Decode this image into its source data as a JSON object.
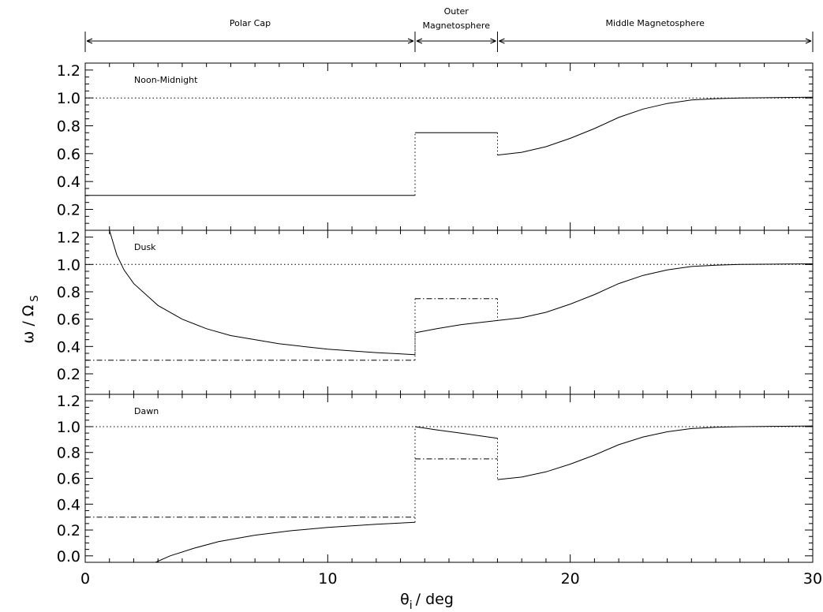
{
  "chart_data": {
    "type": "line",
    "x_range": [
      0,
      30
    ],
    "x_ticks": [
      "0",
      "10",
      "20",
      "30"
    ],
    "xlabel": "θ",
    "xlabel_sub": "i",
    "xlabel_unit": "/ deg",
    "ylabel": "ω / Ω",
    "ylabel_sub": "S",
    "regions": [
      {
        "label": "Polar Cap",
        "x_start": 0,
        "x_end": 13.6
      },
      {
        "label_line1": "Outer",
        "label_line2": "Magnetosphere",
        "x_start": 13.6,
        "x_end": 17.0
      },
      {
        "label": "Middle Magnetosphere",
        "x_start": 17.0,
        "x_end": 30
      }
    ],
    "panels": [
      {
        "label": "Noon-Midnight",
        "ylim": [
          0.05,
          1.25
        ],
        "y_ticks": [
          "0.2",
          "0.4",
          "0.6",
          "0.8",
          "1.0",
          "1.2"
        ],
        "series": [
          {
            "style": "dotted",
            "points": [
              [
                0,
                1.0
              ],
              [
                30,
                1.0
              ]
            ]
          },
          {
            "style": "solid",
            "points": [
              [
                0,
                0.3
              ],
              [
                13.6,
                0.3
              ]
            ]
          },
          {
            "style": "dotted",
            "points": [
              [
                13.6,
                0.3
              ],
              [
                13.6,
                0.75
              ]
            ]
          },
          {
            "style": "solid",
            "points": [
              [
                13.6,
                0.75
              ],
              [
                17.0,
                0.75
              ]
            ]
          },
          {
            "style": "dotted",
            "points": [
              [
                17.0,
                0.75
              ],
              [
                17.0,
                0.59
              ]
            ]
          },
          {
            "style": "solid",
            "points": [
              [
                17.0,
                0.59
              ],
              [
                18.0,
                0.61
              ],
              [
                19.0,
                0.65
              ],
              [
                20.0,
                0.71
              ],
              [
                21.0,
                0.78
              ],
              [
                22.0,
                0.86
              ],
              [
                23.0,
                0.92
              ],
              [
                24.0,
                0.96
              ],
              [
                25.0,
                0.985
              ],
              [
                26.0,
                0.995
              ],
              [
                27.0,
                1.0
              ],
              [
                30.0,
                1.005
              ]
            ]
          }
        ]
      },
      {
        "label": "Dusk",
        "ylim": [
          0.05,
          1.25
        ],
        "y_ticks": [
          "0.2",
          "0.4",
          "0.6",
          "0.8",
          "1.0",
          "1.2"
        ],
        "series": [
          {
            "style": "dotted",
            "points": [
              [
                0,
                1.0
              ],
              [
                30,
                1.0
              ]
            ]
          },
          {
            "style": "dashdot",
            "points": [
              [
                0,
                0.3
              ],
              [
                13.6,
                0.3
              ]
            ]
          },
          {
            "style": "dotted",
            "points": [
              [
                13.6,
                0.3
              ],
              [
                13.6,
                0.75
              ]
            ]
          },
          {
            "style": "dashdot",
            "points": [
              [
                13.6,
                0.75
              ],
              [
                17.0,
                0.75
              ]
            ]
          },
          {
            "style": "dotted",
            "points": [
              [
                17.0,
                0.75
              ],
              [
                17.0,
                0.59
              ]
            ]
          },
          {
            "style": "solid",
            "points": [
              [
                1.0,
                1.25
              ],
              [
                1.3,
                1.07
              ],
              [
                1.6,
                0.96
              ],
              [
                2.0,
                0.86
              ],
              [
                3.0,
                0.7
              ],
              [
                4.0,
                0.6
              ],
              [
                5.0,
                0.53
              ],
              [
                6.0,
                0.48
              ],
              [
                8.0,
                0.42
              ],
              [
                10.0,
                0.38
              ],
              [
                12.0,
                0.355
              ],
              [
                13.6,
                0.34
              ]
            ]
          },
          {
            "style": "dotted",
            "points": [
              [
                13.6,
                0.34
              ],
              [
                13.6,
                0.5
              ]
            ]
          },
          {
            "style": "solid",
            "points": [
              [
                13.6,
                0.5
              ],
              [
                14.5,
                0.53
              ],
              [
                15.5,
                0.56
              ],
              [
                17.0,
                0.59
              ]
            ]
          },
          {
            "style": "solid",
            "points": [
              [
                17.0,
                0.59
              ],
              [
                18.0,
                0.61
              ],
              [
                19.0,
                0.65
              ],
              [
                20.0,
                0.71
              ],
              [
                21.0,
                0.78
              ],
              [
                22.0,
                0.86
              ],
              [
                23.0,
                0.92
              ],
              [
                24.0,
                0.96
              ],
              [
                25.0,
                0.985
              ],
              [
                26.0,
                0.995
              ],
              [
                27.0,
                1.0
              ],
              [
                30.0,
                1.005
              ]
            ]
          }
        ]
      },
      {
        "label": "Dawn",
        "ylim": [
          -0.05,
          1.25
        ],
        "y_ticks": [
          "0.0",
          "0.2",
          "0.4",
          "0.6",
          "0.8",
          "1.0",
          "1.2"
        ],
        "series": [
          {
            "style": "dotted",
            "points": [
              [
                0,
                1.0
              ],
              [
                30,
                1.0
              ]
            ]
          },
          {
            "style": "dashdot",
            "points": [
              [
                0,
                0.3
              ],
              [
                13.6,
                0.3
              ]
            ]
          },
          {
            "style": "dotted",
            "points": [
              [
                13.6,
                0.26
              ],
              [
                13.6,
                1.0
              ]
            ]
          },
          {
            "style": "dashdot",
            "points": [
              [
                13.6,
                0.75
              ],
              [
                17.0,
                0.75
              ]
            ]
          },
          {
            "style": "dotted",
            "points": [
              [
                17.0,
                0.91
              ],
              [
                17.0,
                0.59
              ]
            ]
          },
          {
            "style": "solid",
            "points": [
              [
                2.9,
                -0.05
              ],
              [
                3.5,
                0.0
              ],
              [
                4.5,
                0.06
              ],
              [
                5.5,
                0.11
              ],
              [
                7.0,
                0.16
              ],
              [
                8.5,
                0.195
              ],
              [
                10.0,
                0.22
              ],
              [
                12.0,
                0.245
              ],
              [
                13.6,
                0.26
              ]
            ]
          },
          {
            "style": "solid",
            "points": [
              [
                13.6,
                1.0
              ],
              [
                14.5,
                0.975
              ],
              [
                15.5,
                0.95
              ],
              [
                17.0,
                0.91
              ]
            ]
          },
          {
            "style": "solid",
            "points": [
              [
                17.0,
                0.59
              ],
              [
                18.0,
                0.61
              ],
              [
                19.0,
                0.65
              ],
              [
                20.0,
                0.71
              ],
              [
                21.0,
                0.78
              ],
              [
                22.0,
                0.86
              ],
              [
                23.0,
                0.92
              ],
              [
                24.0,
                0.96
              ],
              [
                25.0,
                0.985
              ],
              [
                26.0,
                0.995
              ],
              [
                27.0,
                1.0
              ],
              [
                30.0,
                1.005
              ]
            ]
          }
        ]
      }
    ]
  }
}
